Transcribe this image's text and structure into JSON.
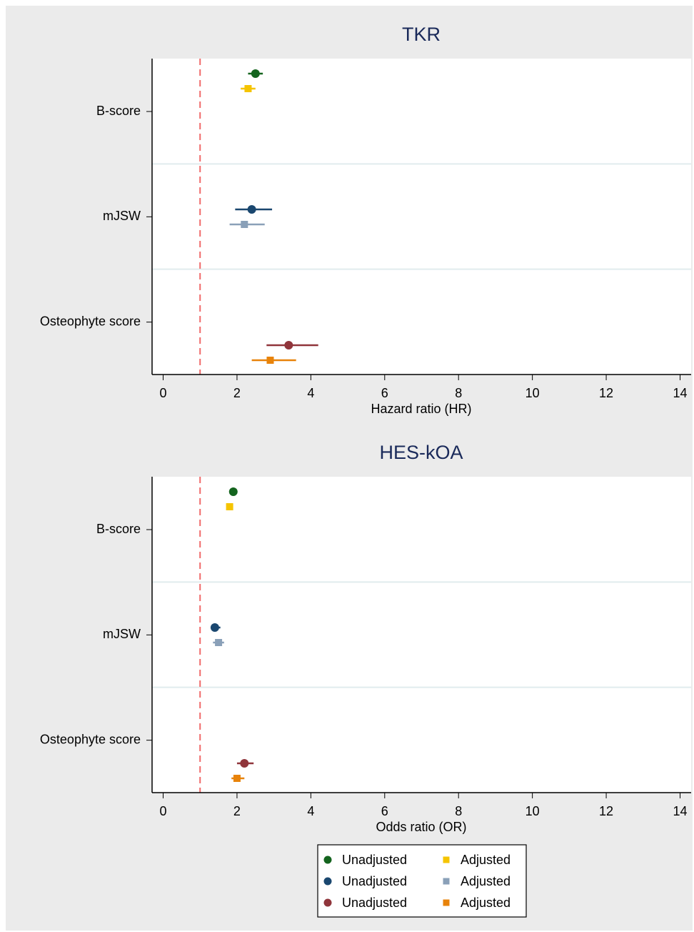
{
  "chart_data": [
    {
      "type": "forest",
      "title": "TKR",
      "xlabel": "Hazard ratio (HR)",
      "categories": [
        "B-score",
        "mJSW",
        "Osteophyte score"
      ],
      "xlim": [
        -0.3,
        14.3
      ],
      "xticks": [
        0,
        2,
        4,
        6,
        8,
        10,
        12,
        14
      ],
      "refline": 1,
      "series": [
        {
          "color": "#14641e",
          "marker": "circle",
          "values": [
            2.5,
            null,
            null
          ],
          "lower": [
            2.3,
            null,
            null
          ],
          "upper": [
            2.7,
            null,
            null
          ]
        },
        {
          "color": "#f5c400",
          "marker": "square",
          "values": [
            2.3,
            null,
            null
          ],
          "lower": [
            2.1,
            null,
            null
          ],
          "upper": [
            2.5,
            null,
            null
          ]
        },
        {
          "color": "#1a476f",
          "marker": "circle",
          "values": [
            null,
            2.4,
            null
          ],
          "lower": [
            null,
            1.95,
            null
          ],
          "upper": [
            null,
            2.95,
            null
          ]
        },
        {
          "color": "#8aa0b8",
          "marker": "square",
          "values": [
            null,
            2.2,
            null
          ],
          "lower": [
            null,
            1.8,
            null
          ],
          "upper": [
            null,
            2.75,
            null
          ]
        },
        {
          "color": "#90353b",
          "marker": "circle",
          "values": [
            null,
            null,
            3.4
          ],
          "lower": [
            null,
            null,
            2.8
          ],
          "upper": [
            null,
            null,
            4.2
          ]
        },
        {
          "color": "#e8830a",
          "marker": "square",
          "values": [
            null,
            null,
            2.9
          ],
          "lower": [
            null,
            null,
            2.4
          ],
          "upper": [
            null,
            null,
            3.6
          ]
        }
      ]
    },
    {
      "type": "forest",
      "title": "HES-kOA",
      "xlabel": "Odds ratio (OR)",
      "categories": [
        "B-score",
        "mJSW",
        "Osteophyte score"
      ],
      "xlim": [
        -0.3,
        14.3
      ],
      "xticks": [
        0,
        2,
        4,
        6,
        8,
        10,
        12,
        14
      ],
      "refline": 1,
      "series": [
        {
          "name": "Unadjusted",
          "color": "#14641e",
          "marker": "circle",
          "values": [
            1.9,
            null,
            null
          ],
          "lower": [
            1.85,
            null,
            null
          ],
          "upper": [
            1.95,
            null,
            null
          ]
        },
        {
          "name": "Adjusted",
          "color": "#f5c400",
          "marker": "square",
          "values": [
            1.8,
            null,
            null
          ],
          "lower": [
            1.75,
            null,
            null
          ],
          "upper": [
            1.85,
            null,
            null
          ]
        },
        {
          "name": "Unadjusted",
          "color": "#1a476f",
          "marker": "circle",
          "values": [
            null,
            1.4,
            null
          ],
          "lower": [
            null,
            1.3,
            null
          ],
          "upper": [
            null,
            1.55,
            null
          ]
        },
        {
          "name": "Adjusted",
          "color": "#8aa0b8",
          "marker": "square",
          "values": [
            null,
            1.5,
            null
          ],
          "lower": [
            null,
            1.35,
            null
          ],
          "upper": [
            null,
            1.65,
            null
          ]
        },
        {
          "name": "Unadjusted",
          "color": "#90353b",
          "marker": "circle",
          "values": [
            null,
            null,
            2.2
          ],
          "lower": [
            null,
            null,
            2.0
          ],
          "upper": [
            null,
            null,
            2.45
          ]
        },
        {
          "name": "Adjusted",
          "color": "#e8830a",
          "marker": "square",
          "values": [
            null,
            null,
            2.0
          ],
          "lower": [
            null,
            null,
            1.85
          ],
          "upper": [
            null,
            null,
            2.2
          ]
        }
      ]
    }
  ]
}
